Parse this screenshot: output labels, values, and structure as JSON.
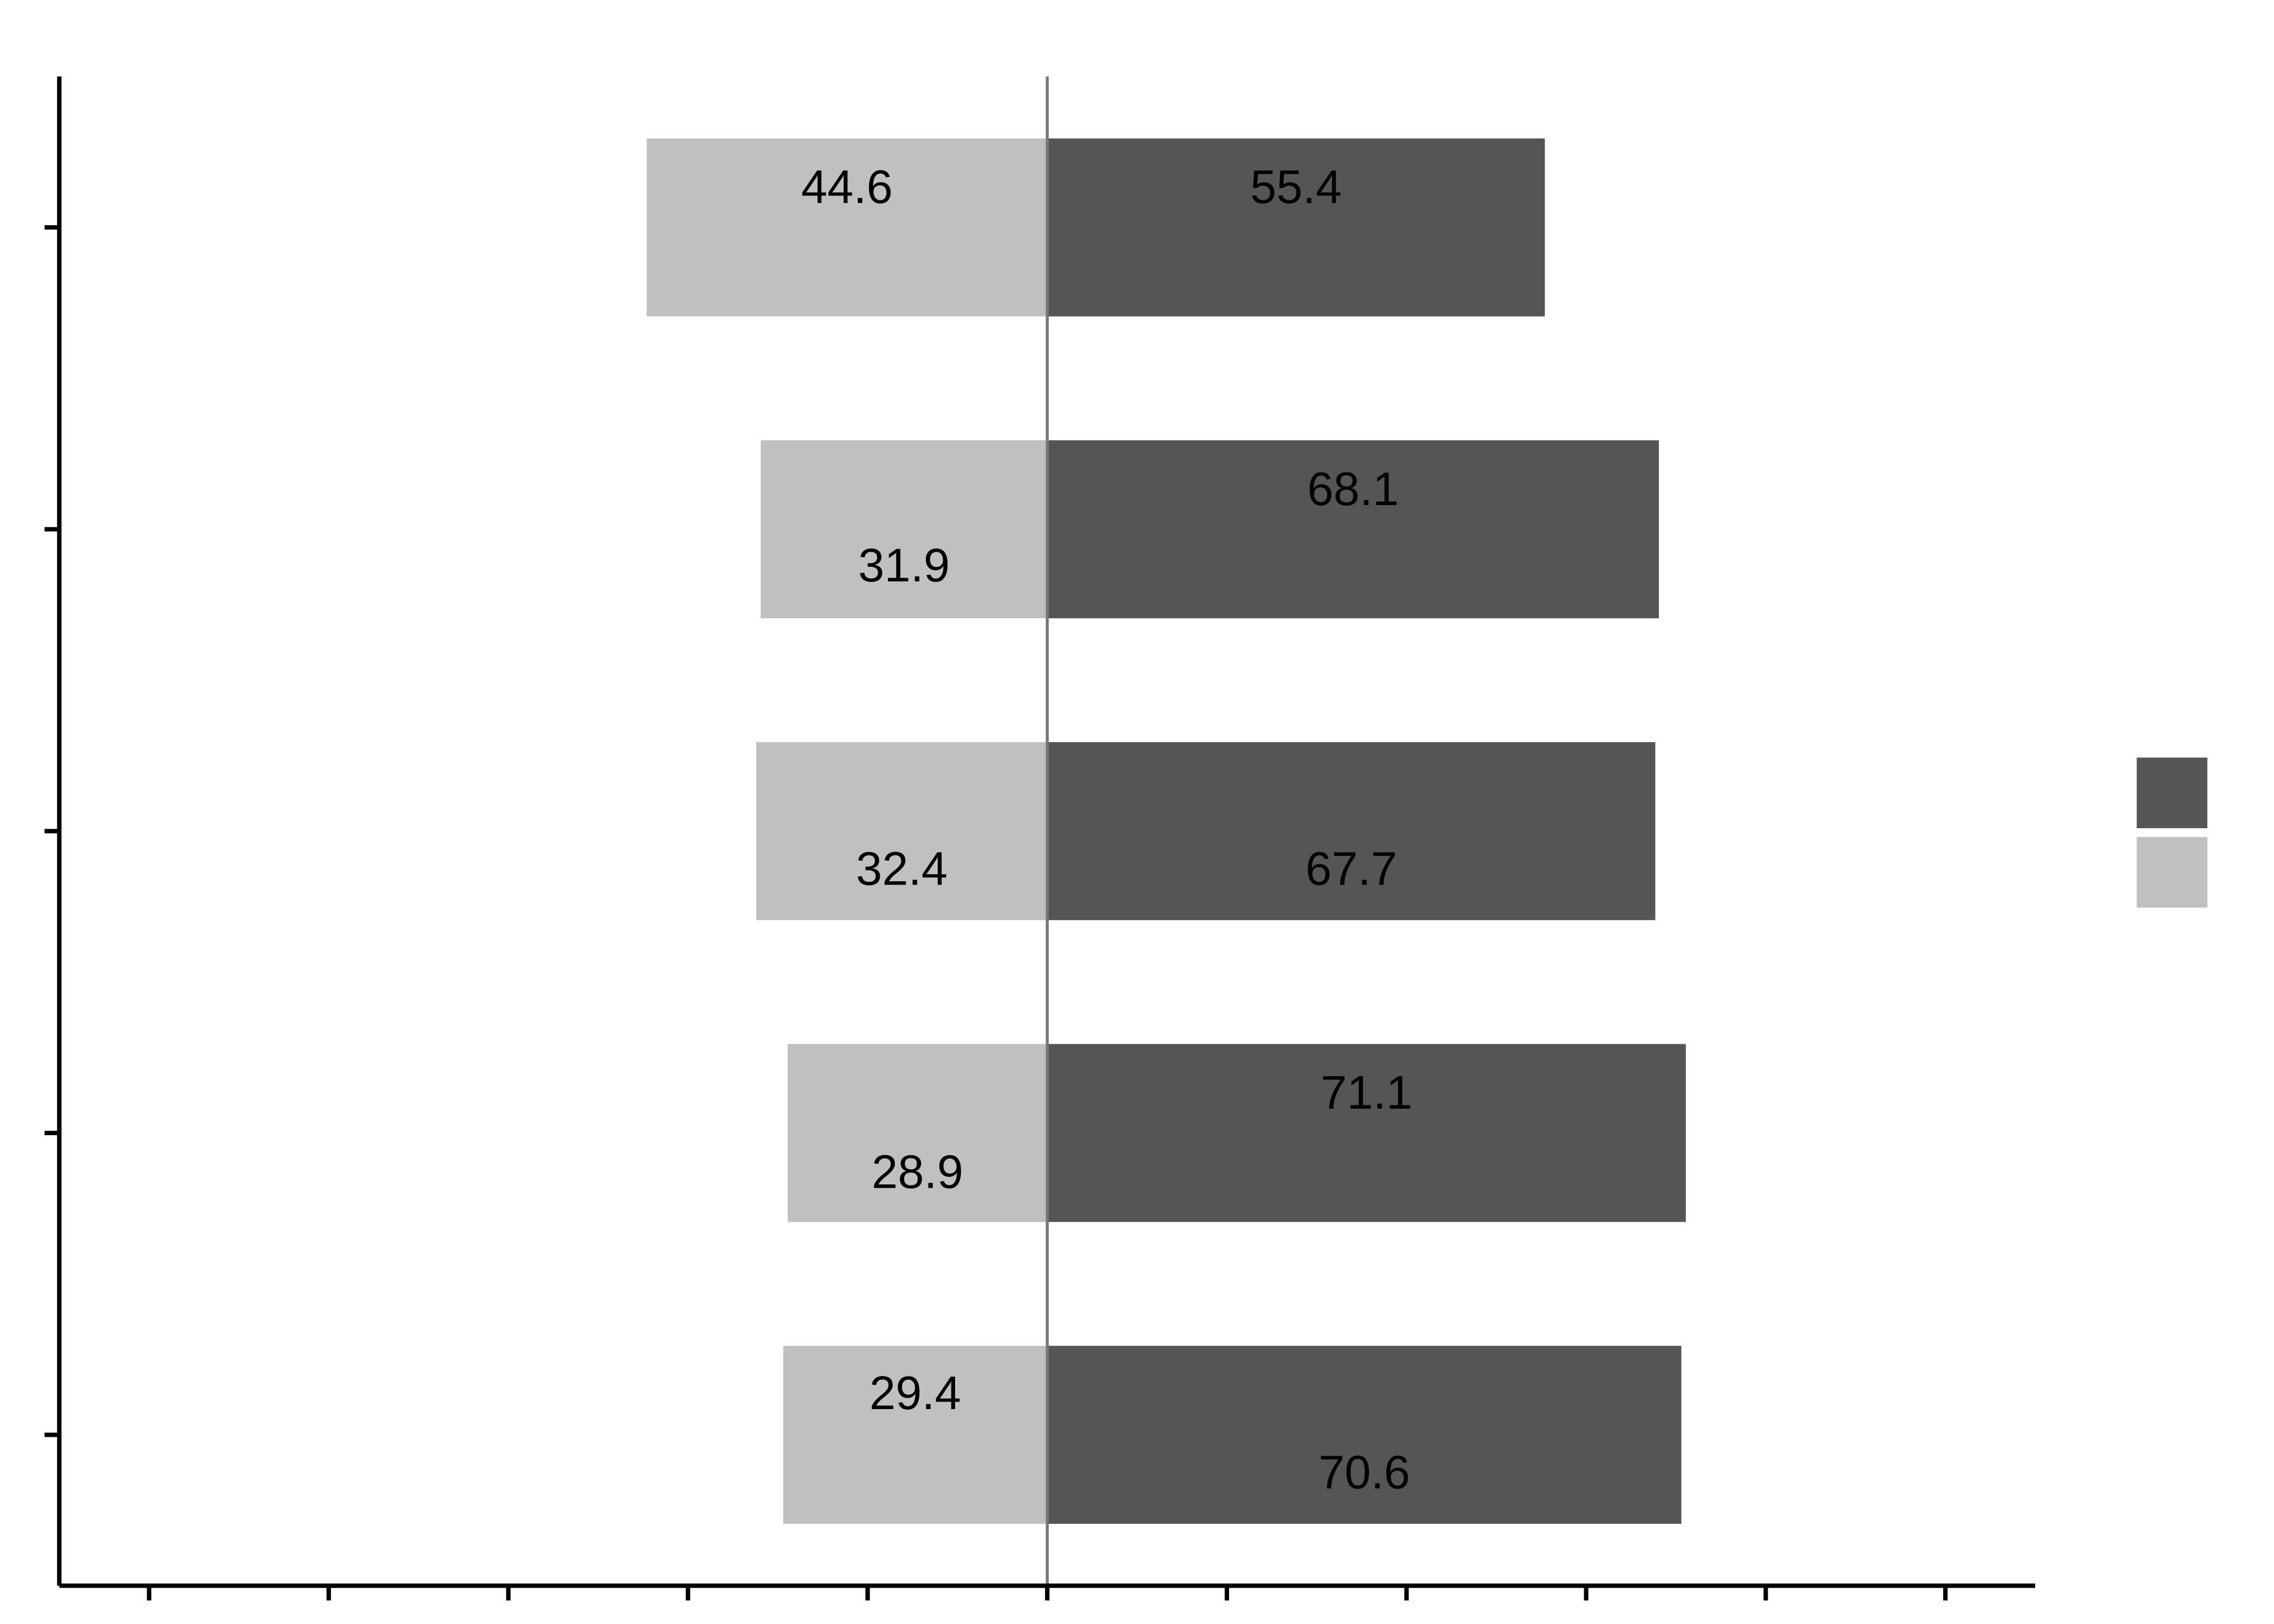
{
  "chart_data": {
    "type": "diverging_bar",
    "categories": [
      null,
      null,
      null,
      null,
      null
    ],
    "series": [
      {
        "color": "#555555",
        "values": [
          55.4,
          68.1,
          67.7,
          71.1,
          70.6
        ]
      },
      {
        "color": "#c0c0c0",
        "values": [
          -44.6,
          -31.9,
          -32.4,
          -28.9,
          -29.4
        ],
        "value_labels": [
          "44.6",
          "31.9",
          "32.4",
          "28.9",
          "29.4"
        ]
      }
    ],
    "xlim": [
      -110,
      110
    ],
    "xticks": [
      -100,
      -80,
      -60,
      -40,
      -20,
      0,
      20,
      40,
      60,
      80,
      100
    ],
    "legend": "right"
  }
}
